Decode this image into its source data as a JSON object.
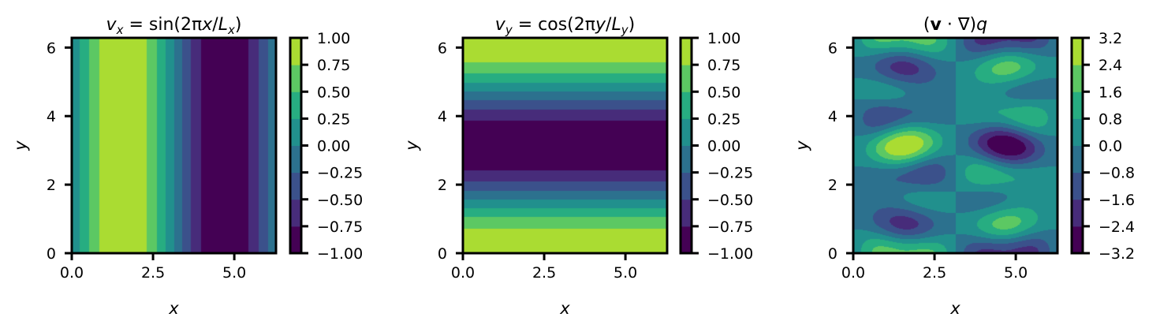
{
  "figure": {
    "background": "#ffffff"
  },
  "colormap": [
    "#440154",
    "#472c7a",
    "#3b518b",
    "#2c718e",
    "#21908d",
    "#27ad81",
    "#5cc863",
    "#aadc32",
    "#fde725"
  ],
  "chart_data": [
    {
      "type": "heatmap",
      "title": "v_x = sin(2πx/L_x)",
      "title_parts": [
        "v",
        "x",
        " = sin(2π",
        "x",
        "/",
        "L",
        "x",
        ")"
      ],
      "xlabel": "x",
      "ylabel": "y",
      "xlim": [
        0,
        6.283
      ],
      "ylim": [
        0,
        6.283
      ],
      "xticks": [
        0.0,
        2.5,
        5.0
      ],
      "xtick_labels": [
        "0.0",
        "2.5",
        "5.0"
      ],
      "yticks": [
        0,
        2,
        4,
        6
      ],
      "ytick_labels": [
        "0",
        "2",
        "4",
        "6"
      ],
      "field": "sin(x)",
      "levels": [
        -1.0,
        -0.75,
        -0.5,
        -0.25,
        0.0,
        0.25,
        0.5,
        0.75,
        1.0
      ],
      "colorbar_ticks": [
        1.0,
        0.75,
        0.5,
        0.25,
        0.0,
        -0.25,
        -0.5,
        -0.75,
        -1.0
      ],
      "colorbar_labels": [
        "1.00",
        "0.75",
        "0.50",
        "0.25",
        "0.00",
        "−0.25",
        "−0.50",
        "−0.75",
        "−1.00"
      ]
    },
    {
      "type": "heatmap",
      "title": "v_y = cos(2πy/L_y)",
      "title_parts": [
        "v",
        "y",
        " = cos(2π",
        "y",
        "/",
        "L",
        "y",
        ")"
      ],
      "xlabel": "x",
      "ylabel": "y",
      "xlim": [
        0,
        6.283
      ],
      "ylim": [
        0,
        6.283
      ],
      "xticks": [
        0.0,
        2.5,
        5.0
      ],
      "xtick_labels": [
        "0.0",
        "2.5",
        "5.0"
      ],
      "yticks": [
        0,
        2,
        4,
        6
      ],
      "ytick_labels": [
        "0",
        "2",
        "4",
        "6"
      ],
      "field": "cos(y)",
      "levels": [
        -1.0,
        -0.75,
        -0.5,
        -0.25,
        0.0,
        0.25,
        0.5,
        0.75,
        1.0
      ],
      "colorbar_ticks": [
        1.0,
        0.75,
        0.5,
        0.25,
        0.0,
        -0.25,
        -0.5,
        -0.75,
        -1.0
      ],
      "colorbar_labels": [
        "1.00",
        "0.75",
        "0.50",
        "0.25",
        "0.00",
        "−0.25",
        "−0.50",
        "−0.75",
        "−1.00"
      ]
    },
    {
      "type": "heatmap",
      "title": "(v·∇)q",
      "title_parts": [
        "(",
        "v",
        " · ∇)",
        "q"
      ],
      "xlabel": "x",
      "ylabel": "y",
      "xlim": [
        0,
        6.283
      ],
      "ylim": [
        0,
        6.283
      ],
      "xticks": [
        0.0,
        2.5,
        5.0
      ],
      "xtick_labels": [
        "0.0",
        "2.5",
        "5.0"
      ],
      "yticks": [
        0,
        2,
        4,
        6
      ],
      "ytick_labels": [
        "0",
        "2",
        "4",
        "6"
      ],
      "field": "advection",
      "levels": [
        -3.2,
        -2.4,
        -1.6,
        -0.8,
        0.0,
        0.8,
        1.6,
        2.4,
        3.2
      ],
      "colorbar_ticks": [
        3.2,
        2.4,
        1.6,
        0.8,
        0.0,
        -0.8,
        -1.6,
        -2.4,
        -3.2
      ],
      "colorbar_labels": [
        "3.2",
        "2.4",
        "1.6",
        "0.8",
        "0.0",
        "−0.8",
        "−1.6",
        "−2.4",
        "−3.2"
      ]
    }
  ]
}
